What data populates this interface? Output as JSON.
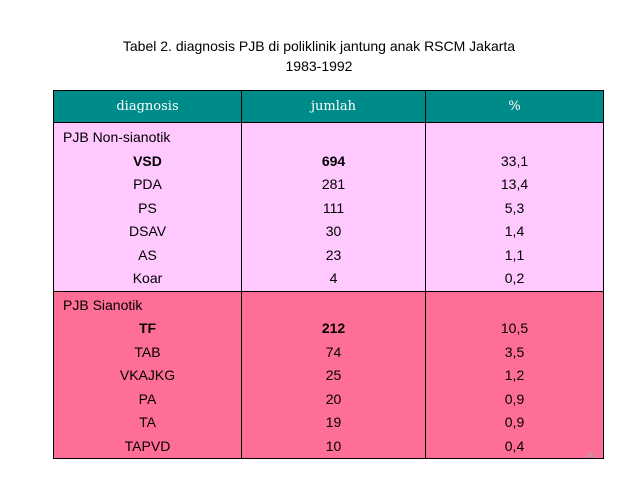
{
  "title_line1": "Tabel 2. diagnosis PJB di poliklinik jantung anak RSCM Jakarta",
  "title_line2": "1983-1992",
  "headers": {
    "diagnosis": "diagnosis",
    "jumlah": "jumlah",
    "percent": "%"
  },
  "groups": [
    {
      "label": "PJB Non-sianotik",
      "rows": [
        {
          "name": "VSD",
          "jumlah": "694",
          "percent": "33,1",
          "bold": true
        },
        {
          "name": "PDA",
          "jumlah": "281",
          "percent": "13,4"
        },
        {
          "name": "PS",
          "jumlah": "111",
          "percent": "5,3"
        },
        {
          "name": "DSAV",
          "jumlah": "30",
          "percent": "1,4"
        },
        {
          "name": "AS",
          "jumlah": "23",
          "percent": "1,1"
        },
        {
          "name": "Koar",
          "jumlah": "4",
          "percent": "0,2"
        }
      ]
    },
    {
      "label": "PJB Sianotik",
      "rows": [
        {
          "name": "TF",
          "jumlah": "212",
          "percent": "10,5",
          "bold": true
        },
        {
          "name": "TAB",
          "jumlah": "74",
          "percent": "3,5"
        },
        {
          "name": "VKAJKG",
          "jumlah": "25",
          "percent": "1,2"
        },
        {
          "name": "PA",
          "jumlah": "20",
          "percent": "0,9"
        },
        {
          "name": "TA",
          "jumlah": "19",
          "percent": "0,9"
        },
        {
          "name": "TAPVD",
          "jumlah": "10",
          "percent": "0,4"
        }
      ]
    }
  ],
  "page_number": "40",
  "colors": {
    "header": "#008b8b",
    "group1": "#ffc8ff",
    "group2": "#ff6e96"
  }
}
